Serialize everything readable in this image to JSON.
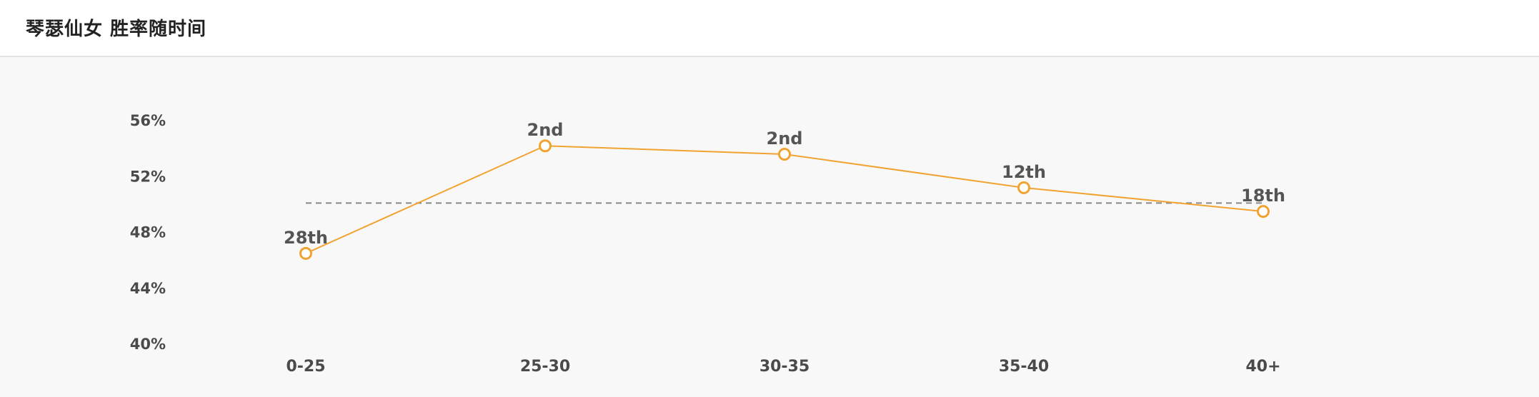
{
  "header": {
    "title": "琴瑟仙女 胜率随时间"
  },
  "chart_data": {
    "type": "line",
    "categories": [
      "0-25",
      "25-30",
      "30-35",
      "35-40",
      "40+"
    ],
    "series": [
      {
        "values": [
          46.5,
          54.2,
          53.6,
          51.2,
          49.5
        ],
        "labels": [
          "28th",
          "2nd",
          "2nd",
          "12th",
          "18th"
        ]
      }
    ],
    "reference_line": 50.1,
    "ylim": [
      40,
      56
    ],
    "yticks": [
      56,
      52,
      48,
      44,
      40
    ],
    "ytick_suffix": "%",
    "grid": false,
    "colors": {
      "line": "#f0a330",
      "marker_fill": "#ffffff",
      "reference": "#888888",
      "background": "#f8f8f8"
    }
  }
}
